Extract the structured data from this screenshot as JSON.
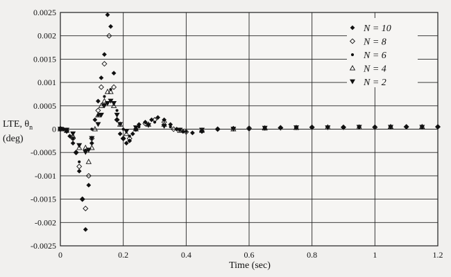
{
  "chart_data": {
    "type": "scatter",
    "title": "",
    "xlabel": "Time (sec)",
    "ylabel_line1": "LTE, θ",
    "ylabel_sub": "n",
    "ylabel_line2": "(deg)",
    "xlim": [
      0,
      1.2
    ],
    "ylim": [
      -0.0025,
      0.0025
    ],
    "xticks": [
      0,
      0.2,
      0.4,
      0.6,
      0.8,
      1,
      1.2
    ],
    "xtick_labels": [
      "0",
      "0.2",
      "0.4",
      "0.6",
      "0.8",
      "1",
      "1.2"
    ],
    "yticks": [
      0.0025,
      0.002,
      0.0015,
      0.001,
      0.0005,
      0,
      -0.0005,
      -0.001,
      -0.0015,
      -0.002,
      -0.0025
    ],
    "ytick_labels": [
      "0.0025",
      "0.002",
      "0.0015",
      "0.001",
      "0.0005",
      "0",
      "-0.0005",
      "-0.001",
      "-0.0015",
      "-0.002",
      "-0.0025"
    ],
    "grid": true,
    "legend_position": "top-right",
    "series": [
      {
        "name": "N = 10",
        "marker": "diamond-filled",
        "points": [
          [
            0.0,
            2e-05
          ],
          [
            0.01,
            0.0
          ],
          [
            0.02,
            -5e-05
          ],
          [
            0.03,
            -0.00015
          ],
          [
            0.04,
            -0.0003
          ],
          [
            0.05,
            -0.0005
          ],
          [
            0.06,
            -0.0009
          ],
          [
            0.07,
            -0.0015
          ],
          [
            0.08,
            -0.00215
          ],
          [
            0.09,
            -0.0012
          ],
          [
            0.1,
            -0.0003
          ],
          [
            0.11,
            0.0002
          ],
          [
            0.12,
            0.0006
          ],
          [
            0.13,
            0.0011
          ],
          [
            0.14,
            0.0016
          ],
          [
            0.15,
            0.00245
          ],
          [
            0.16,
            0.0022
          ],
          [
            0.17,
            0.0012
          ],
          [
            0.18,
            0.0002
          ],
          [
            0.19,
            -0.0001
          ],
          [
            0.2,
            -0.0002
          ],
          [
            0.21,
            -0.0003
          ],
          [
            0.22,
            -0.00025
          ],
          [
            0.23,
            -0.0001
          ],
          [
            0.24,
            0.0
          ],
          [
            0.25,
            0.0001
          ],
          [
            0.27,
            0.00015
          ],
          [
            0.29,
            0.0002
          ],
          [
            0.31,
            0.00025
          ],
          [
            0.33,
            0.0002
          ],
          [
            0.35,
            0.0001
          ],
          [
            0.37,
            0.0
          ],
          [
            0.39,
            -5e-05
          ],
          [
            0.42,
            -8e-05
          ],
          [
            0.45,
            -5e-05
          ],
          [
            0.5,
            0.0
          ],
          [
            0.55,
            2e-05
          ],
          [
            0.6,
            0.0
          ],
          [
            0.65,
            2e-05
          ],
          [
            0.7,
            3e-05
          ],
          [
            0.75,
            3e-05
          ],
          [
            0.8,
            4e-05
          ],
          [
            0.85,
            4e-05
          ],
          [
            0.9,
            4e-05
          ],
          [
            0.95,
            4e-05
          ],
          [
            1.0,
            5e-05
          ],
          [
            1.05,
            5e-05
          ],
          [
            1.1,
            5e-05
          ],
          [
            1.15,
            5e-05
          ],
          [
            1.2,
            5e-05
          ]
        ]
      },
      {
        "name": "N = 8",
        "marker": "diamond-open",
        "points": [
          [
            0.0,
            0.0
          ],
          [
            0.02,
            -3e-05
          ],
          [
            0.04,
            -0.0002
          ],
          [
            0.05,
            -0.0005
          ],
          [
            0.06,
            -0.0008
          ],
          [
            0.07,
            -0.0015
          ],
          [
            0.08,
            -0.0017
          ],
          [
            0.09,
            -0.001
          ],
          [
            0.1,
            -0.0002
          ],
          [
            0.12,
            0.0004
          ],
          [
            0.13,
            0.0009
          ],
          [
            0.14,
            0.0014
          ],
          [
            0.155,
            0.002
          ],
          [
            0.17,
            0.0009
          ],
          [
            0.18,
            0.0002
          ],
          [
            0.2,
            -0.0002
          ],
          [
            0.22,
            -0.0002
          ],
          [
            0.24,
            0.0
          ],
          [
            0.27,
            0.00012
          ],
          [
            0.3,
            0.0002
          ],
          [
            0.33,
            0.00015
          ],
          [
            0.36,
            0.0
          ],
          [
            0.4,
            -6e-05
          ],
          [
            0.45,
            -4e-05
          ],
          [
            0.5,
            0.0
          ],
          [
            0.6,
            2e-05
          ],
          [
            0.7,
            3e-05
          ],
          [
            0.8,
            4e-05
          ],
          [
            0.9,
            4e-05
          ],
          [
            1.0,
            4e-05
          ],
          [
            1.1,
            5e-05
          ],
          [
            1.2,
            5e-05
          ]
        ]
      },
      {
        "name": "N = 6",
        "marker": "dot",
        "points": [
          [
            0.0,
            0.0
          ],
          [
            0.02,
            -2e-05
          ],
          [
            0.04,
            -0.0002
          ],
          [
            0.06,
            -0.0007
          ],
          [
            0.08,
            -0.00045
          ],
          [
            0.1,
            0.0
          ],
          [
            0.12,
            0.0003
          ],
          [
            0.14,
            0.0007
          ],
          [
            0.16,
            0.00085
          ],
          [
            0.18,
            0.0004
          ],
          [
            0.2,
            0.0
          ],
          [
            0.22,
            -0.00015
          ],
          [
            0.25,
            5e-05
          ],
          [
            0.3,
            0.00015
          ],
          [
            0.35,
            5e-05
          ],
          [
            0.4,
            -5e-05
          ],
          [
            0.5,
            0.0
          ],
          [
            0.6,
            2e-05
          ],
          [
            0.7,
            3e-05
          ],
          [
            0.8,
            4e-05
          ],
          [
            0.9,
            4e-05
          ],
          [
            1.0,
            5e-05
          ],
          [
            1.1,
            5e-05
          ],
          [
            1.2,
            5e-05
          ]
        ]
      },
      {
        "name": "N = 4",
        "marker": "triangle-open",
        "points": [
          [
            0.0,
            0.0
          ],
          [
            0.02,
            -3e-05
          ],
          [
            0.04,
            -0.00015
          ],
          [
            0.06,
            -0.0004
          ],
          [
            0.08,
            -0.0004
          ],
          [
            0.09,
            -0.0007
          ],
          [
            0.1,
            -0.0004
          ],
          [
            0.11,
            0.0
          ],
          [
            0.12,
            0.0003
          ],
          [
            0.13,
            0.0005
          ],
          [
            0.14,
            0.0006
          ],
          [
            0.15,
            0.0008
          ],
          [
            0.16,
            0.0008
          ],
          [
            0.17,
            0.0005
          ],
          [
            0.19,
            0.0001
          ],
          [
            0.21,
            -0.0001
          ],
          [
            0.24,
            0.0
          ],
          [
            0.28,
            0.0001
          ],
          [
            0.33,
            0.0001
          ],
          [
            0.38,
            -3e-05
          ],
          [
            0.45,
            -3e-05
          ],
          [
            0.55,
            0.0
          ],
          [
            0.65,
            2e-05
          ],
          [
            0.75,
            3e-05
          ],
          [
            0.85,
            4e-05
          ],
          [
            0.95,
            4e-05
          ],
          [
            1.05,
            5e-05
          ],
          [
            1.15,
            5e-05
          ]
        ]
      },
      {
        "name": "N = 2",
        "marker": "triangle-down-filled",
        "points": [
          [
            0.0,
            0.0
          ],
          [
            0.02,
            -2e-05
          ],
          [
            0.04,
            -0.0001
          ],
          [
            0.06,
            -0.00035
          ],
          [
            0.08,
            -0.0005
          ],
          [
            0.09,
            -0.00045
          ],
          [
            0.1,
            -0.0002
          ],
          [
            0.12,
            0.0001
          ],
          [
            0.13,
            0.0003
          ],
          [
            0.14,
            0.0005
          ],
          [
            0.15,
            0.00055
          ],
          [
            0.16,
            0.0006
          ],
          [
            0.17,
            0.00055
          ],
          [
            0.18,
            0.0003
          ],
          [
            0.19,
            0.0001
          ],
          [
            0.21,
            -5e-05
          ],
          [
            0.24,
            3e-05
          ],
          [
            0.28,
            8e-05
          ],
          [
            0.33,
            6e-05
          ],
          [
            0.38,
            -2e-05
          ],
          [
            0.45,
            -2e-05
          ],
          [
            0.55,
            0.0
          ],
          [
            0.65,
            2e-05
          ],
          [
            0.75,
            3e-05
          ],
          [
            0.85,
            3e-05
          ],
          [
            0.95,
            4e-05
          ],
          [
            1.05,
            4e-05
          ],
          [
            1.15,
            4e-05
          ]
        ]
      }
    ]
  }
}
